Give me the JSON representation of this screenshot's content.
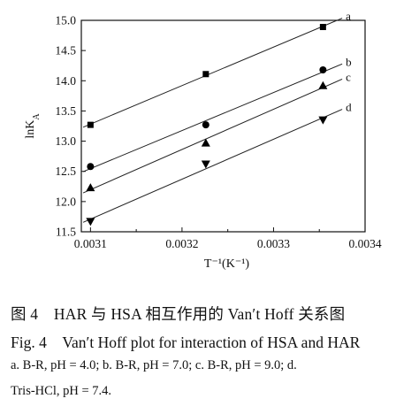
{
  "chart_data": {
    "type": "scatter",
    "x_axis": {
      "range": [
        0.00309,
        0.0034
      ],
      "ticks": [
        "0.0031",
        "0.0032",
        "0.0033",
        "0.0034"
      ],
      "tick_values": [
        0.0031,
        0.0032,
        0.0033,
        0.0034
      ],
      "label": "T⁻¹(K⁻¹)"
    },
    "y_axis": {
      "range": [
        11.5,
        15.0
      ],
      "ticks": [
        "11.5",
        "12.0",
        "12.5",
        "13.0",
        "13.5",
        "14.0",
        "14.5",
        "15.0"
      ],
      "tick_values": [
        11.5,
        12.0,
        12.5,
        13.0,
        13.5,
        14.0,
        14.5,
        15.0
      ],
      "label": "lnK",
      "label_sub": "A"
    },
    "grid": false,
    "series": [
      {
        "name": "a",
        "marker": "square",
        "x": [
          0.0031,
          0.003226,
          0.003354
        ],
        "y": [
          13.27,
          14.11,
          14.89
        ]
      },
      {
        "name": "b",
        "marker": "circle",
        "x": [
          0.0031,
          0.003226,
          0.003354
        ],
        "y": [
          12.58,
          13.27,
          14.18
        ]
      },
      {
        "name": "c",
        "marker": "triangle-up",
        "x": [
          0.0031,
          0.003226,
          0.003354
        ],
        "y": [
          12.23,
          12.97,
          13.92
        ]
      },
      {
        "name": "d",
        "marker": "triangle-down",
        "x": [
          0.0031,
          0.003226,
          0.003354
        ],
        "y": [
          11.67,
          12.62,
          13.35
        ]
      }
    ]
  },
  "caption": {
    "zh": "图 4　HAR 与 HSA 相互作用的 Van′t Hoff 关系图",
    "en": "Fig. 4　Van′t Hoff plot for interaction of HSA and HAR",
    "note_line1": "a. B-R, pH = 4.0; b. B-R, pH = 7.0; c. B-R, pH = 9.0; d.",
    "note_line2": "Tris-HCl, pH = 7.4."
  }
}
